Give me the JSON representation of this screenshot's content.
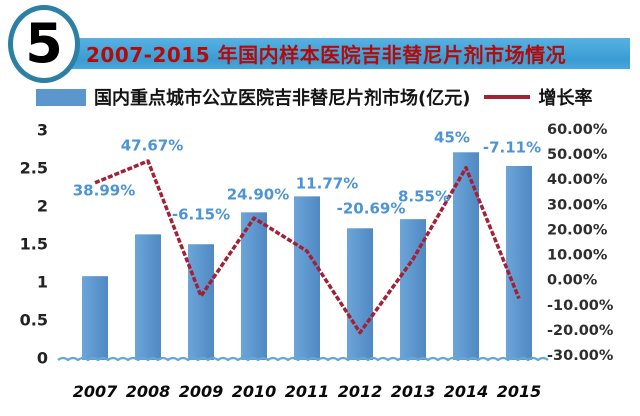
{
  "header": {
    "badge": "5",
    "title": "2007-2015 年国内样本医院吉非替尼片剂市场情况"
  },
  "legend": {
    "bars_label": "国内重点城市公立医院吉非替尼片剂市场(亿元)",
    "line_label": "增长率"
  },
  "colors": {
    "badge_border": "#2b80a4",
    "title_bar": "#3a9cd3",
    "title_text": "#b40a0a",
    "bar_light": "#6ba5d9",
    "bar_dark": "#5089c2",
    "line": "#a32035",
    "data_label_text": "#4d94d6",
    "baseline": "#5fa8d8"
  },
  "chart_data": {
    "type": "bar+line",
    "title": "2007-2015 年国内样本医院吉非替尼片剂市场情况",
    "categories": [
      "2007",
      "2008",
      "2009",
      "2010",
      "2011",
      "2012",
      "2013",
      "2014",
      "2015"
    ],
    "series": [
      {
        "name": "国内重点城市公立医院吉非替尼片剂市场(亿元)",
        "type": "bar",
        "axis": "left",
        "unit": "亿元",
        "values": [
          1.09,
          1.64,
          1.51,
          1.93,
          2.14,
          1.72,
          1.84,
          2.72,
          2.54
        ]
      },
      {
        "name": "增长率",
        "type": "line",
        "axis": "right",
        "unit": "%",
        "values": [
          38.99,
          47.67,
          -6.15,
          24.9,
          11.77,
          -20.69,
          8.55,
          45,
          -7.11
        ],
        "labels": [
          "38.99%",
          "47.67%",
          "-6.15%",
          "24.90%",
          "11.77%",
          "-20.69%",
          "8.55%",
          "45%",
          "-7.11%"
        ]
      }
    ],
    "left_axis": {
      "min": 0,
      "max": 3,
      "ticks": [
        "3",
        "2.5",
        "2",
        "1.5",
        "1",
        "0.5",
        "0"
      ]
    },
    "right_axis": {
      "min": -30,
      "max": 60,
      "ticks": [
        "60.00%",
        "50.00%",
        "40.00%",
        "30.00%",
        "20.00%",
        "10.00%",
        "0.00%",
        "-10.00%",
        "-20.00%",
        "-30.00%"
      ]
    },
    "legend_position": "top",
    "grid": false,
    "label_positions": [
      [
        104,
        75
      ],
      [
        152,
        30
      ],
      [
        201,
        99
      ],
      [
        258,
        79
      ],
      [
        327,
        68
      ],
      [
        371,
        93
      ],
      [
        424,
        81
      ],
      [
        452,
        22
      ],
      [
        512,
        32
      ]
    ]
  }
}
